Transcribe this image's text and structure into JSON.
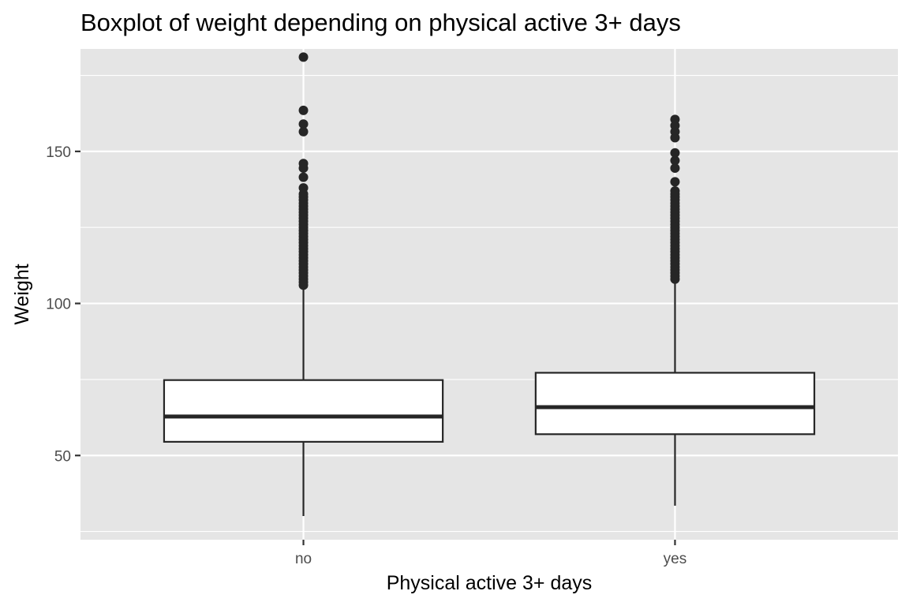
{
  "chart_data": {
    "type": "boxplot",
    "title": "Boxplot of weight depending on physical active 3+ days",
    "xlabel": "Physical active 3+ days",
    "ylabel": "Weight",
    "categories": [
      "no",
      "yes"
    ],
    "ylim": [
      22.3,
      183.7
    ],
    "yticks": [
      50,
      100,
      150
    ],
    "grid": true,
    "legend": "none",
    "panel_background": "#e5e5e5",
    "box_fill": "#ffffff",
    "line_color": "#262626",
    "boxes": [
      {
        "category": "no",
        "lower_whisker": 30.1,
        "q1": 54.5,
        "median": 62.8,
        "q3": 74.8,
        "upper_whisker": 105.4,
        "outliers": [
          106,
          107,
          108,
          109,
          110,
          111,
          112,
          113,
          114,
          115,
          116,
          117,
          118,
          119,
          120,
          121,
          122,
          123,
          124,
          125,
          126,
          127,
          128,
          129,
          130,
          131,
          132,
          133,
          134,
          135,
          136,
          138,
          141.5,
          144.5,
          146,
          156.5,
          159,
          163.5,
          181
        ]
      },
      {
        "category": "yes",
        "lower_whisker": 33.5,
        "q1": 57,
        "median": 65.9,
        "q3": 77.2,
        "upper_whisker": 107.3,
        "outliers": [
          108,
          109,
          110,
          111,
          112,
          113,
          114,
          115,
          116,
          117,
          118,
          119,
          120,
          121,
          122,
          123,
          124,
          125,
          126,
          127,
          128,
          129,
          130,
          131,
          132,
          133,
          134,
          135,
          136,
          137,
          140,
          144.5,
          147,
          149.5,
          154.5,
          156.5,
          158.5,
          160.5
        ]
      }
    ]
  }
}
